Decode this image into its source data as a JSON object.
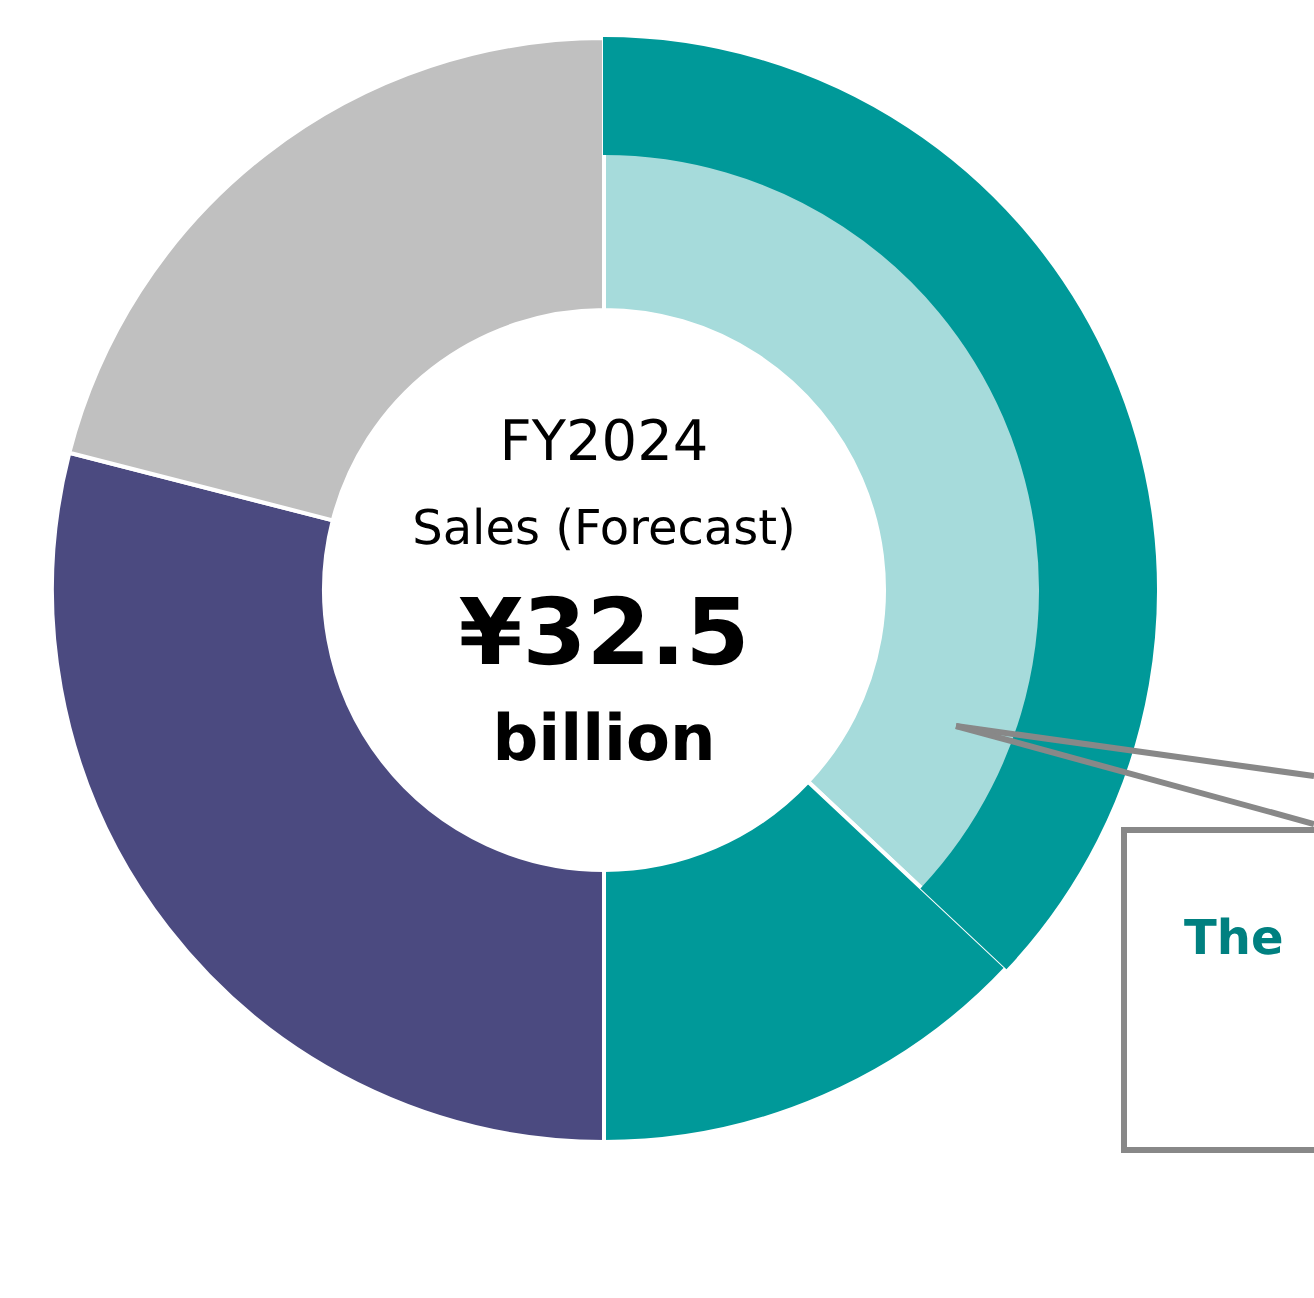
{
  "chart_data": {
    "type": "donut",
    "title": "FY2024",
    "subtitle": "Sales (Forecast)",
    "categories": [
      null,
      null,
      null,
      null
    ],
    "values": [
      37,
      13,
      29,
      21
    ],
    "colors": [
      "#a6dbdb",
      "#009999",
      "#4b4a80",
      "#c0c0c0"
    ],
    "annotations": [
      "¥32.5",
      "billion",
      "The"
    ]
  }
}
